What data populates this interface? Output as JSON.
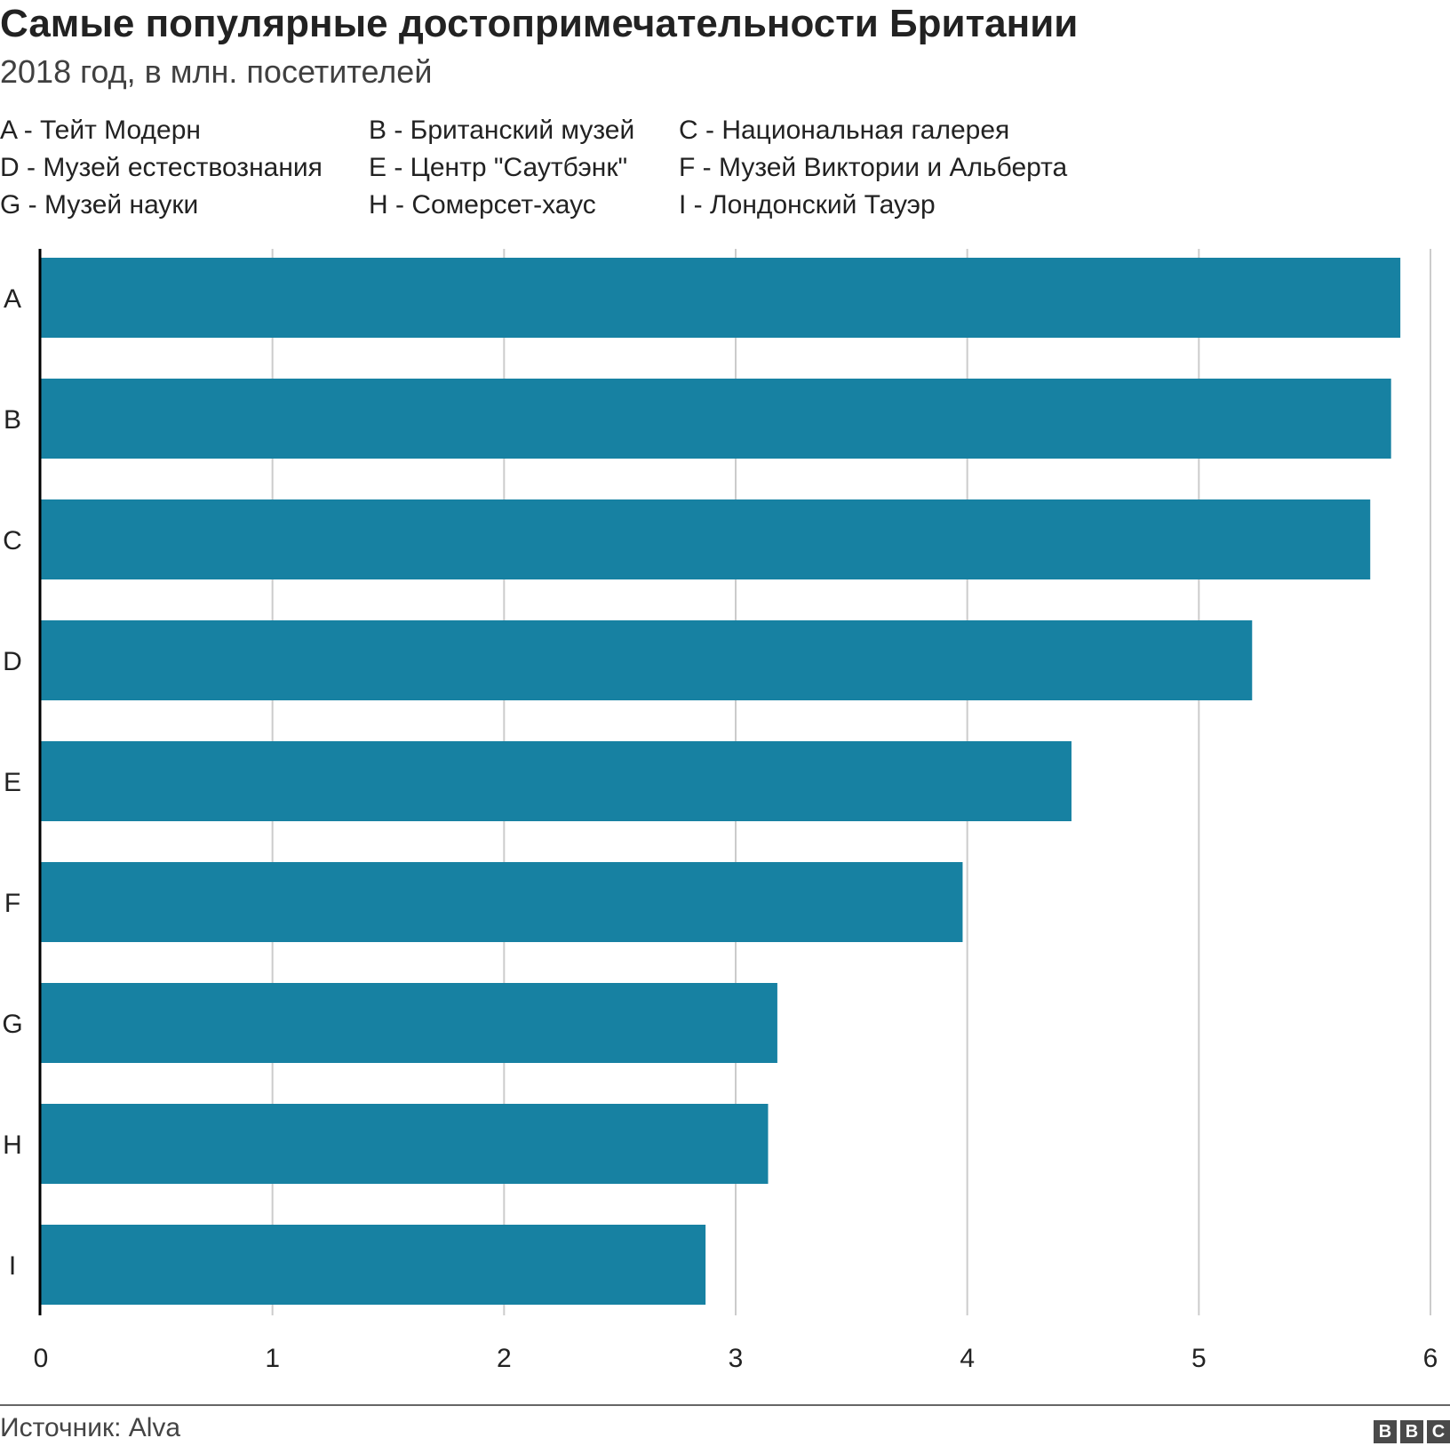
{
  "chart_data": {
    "type": "bar",
    "orientation": "horizontal",
    "title": "Самые популярные достопримечательности Британии",
    "subtitle": "2018 год, в млн. посетителей",
    "categories": [
      "A",
      "B",
      "C",
      "D",
      "E",
      "F",
      "G",
      "H",
      "I"
    ],
    "values": [
      5.87,
      5.83,
      5.74,
      5.23,
      4.45,
      3.98,
      3.18,
      3.14,
      2.87
    ],
    "xlim": [
      0,
      6
    ],
    "xticks": [
      "0",
      "1",
      "2",
      "3",
      "4",
      "5",
      "6"
    ],
    "grid": true,
    "bar_color": "#1781a2",
    "legend_entries": [
      "A - Тейт Модерн",
      "B - Британский музей",
      "C - Национальная галерея",
      "D - Музей естествознания",
      "E - Центр \"Саутбэнк\"",
      "F - Музей Виктории и Альберта",
      "G - Музей науки",
      "H - Сомерсет-хаус",
      "I - Лондонский Тауэр"
    ],
    "source": "Источник: Alva",
    "logo": "BBC"
  }
}
